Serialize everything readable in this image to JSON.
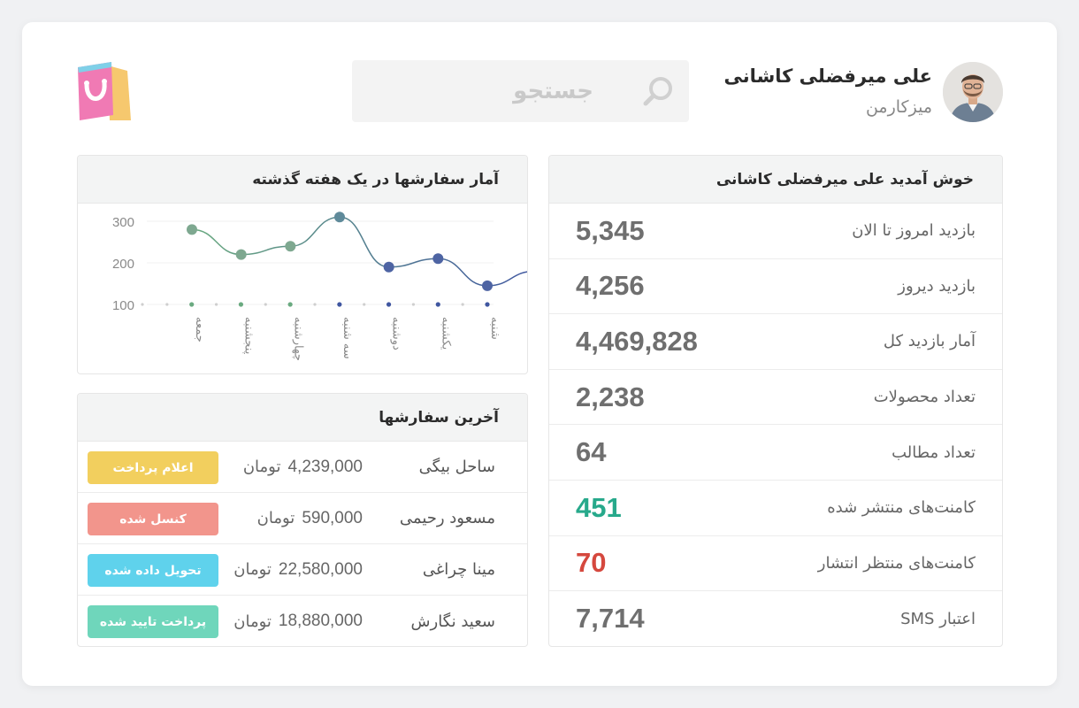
{
  "header": {
    "user_name": "علی میرفضلی کاشانی",
    "user_role": "میزکارمن",
    "search_placeholder": "جستجو"
  },
  "stats": {
    "title": "خوش آمدید علی میرفضلی کاشانی",
    "rows": [
      {
        "label": "بازدید امروز تا الان",
        "value": "5,345",
        "color": "#6f6f6f"
      },
      {
        "label": "بازدید دیروز",
        "value": "4,256",
        "color": "#6f6f6f"
      },
      {
        "label": "آمار بازدید کل",
        "value": "4,469,828",
        "color": "#6f6f6f"
      },
      {
        "label": "تعداد محصولات",
        "value": "2,238",
        "color": "#6f6f6f"
      },
      {
        "label": "تعداد مطالب",
        "value": "64",
        "color": "#6f6f6f"
      },
      {
        "label": "کامنت‌های منتشر شده",
        "value": "451",
        "color": "#27a98b"
      },
      {
        "label": "کامنت‌های منتظر انتشار",
        "value": "70",
        "color": "#d5483e"
      },
      {
        "label": "اعتبار SMS",
        "value": "7,714",
        "color": "#6f6f6f"
      }
    ]
  },
  "chart_panel": {
    "title": "آمار سفارشها در یک هفته گذشته"
  },
  "chart_data": {
    "type": "line",
    "categories": [
      "شنبه",
      "یکشنبه",
      "دوشنبه",
      "سه شنبه",
      "چهارشنبه",
      "پنجشنبه",
      "جمعه"
    ],
    "values": [
      145,
      210,
      190,
      310,
      240,
      220,
      280
    ],
    "y_ticks": [
      100,
      200,
      300
    ],
    "ylim": [
      100,
      300
    ],
    "grid": true,
    "color_start": "#6aaa80",
    "color_end": "#3f56a0"
  },
  "orders": {
    "title": "آخرین سفارشها",
    "currency": "تومان",
    "rows": [
      {
        "name": "ساحل بیگی",
        "price": "4,239,000",
        "status": "اعلام پرداخت",
        "color": "#f2cf5e"
      },
      {
        "name": "مسعود رحیمی",
        "price": "590,000",
        "status": "کنسل شده",
        "color": "#f2958c"
      },
      {
        "name": "مینا چراغی",
        "price": "22,580,000",
        "status": "تحویل داده شده",
        "color": "#5fd2ec"
      },
      {
        "name": "سعید نگارش",
        "price": "18,880,000",
        "status": "پرداخت تایید شده",
        "color": "#6fd6bb"
      }
    ]
  }
}
